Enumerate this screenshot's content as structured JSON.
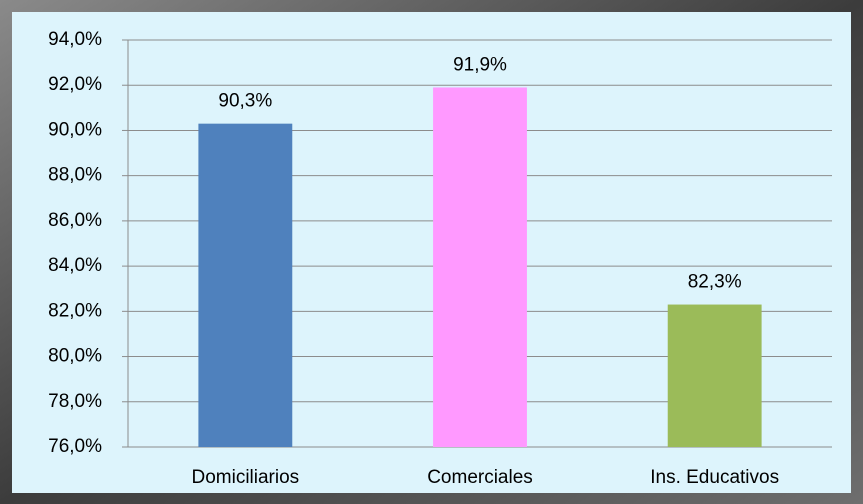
{
  "chart_data": {
    "type": "bar",
    "categories": [
      "Domiciliarios",
      "Comerciales",
      "Ins. Educativos"
    ],
    "values": [
      90.3,
      91.9,
      82.3
    ],
    "value_labels": [
      "90,3%",
      "91,9%",
      "82,3%"
    ],
    "colors": [
      "#4f81bd",
      "#ff99ff",
      "#9bbb59"
    ],
    "ylim": [
      76,
      94
    ],
    "yticks": [
      {
        "value": 76,
        "label": "76,0%"
      },
      {
        "value": 78,
        "label": "78,0%"
      },
      {
        "value": 80,
        "label": "80,0%"
      },
      {
        "value": 82,
        "label": "82,0%"
      },
      {
        "value": 84,
        "label": "84,0%"
      },
      {
        "value": 86,
        "label": "86,0%"
      },
      {
        "value": 88,
        "label": "88,0%"
      },
      {
        "value": 90,
        "label": "90,0%"
      },
      {
        "value": 92,
        "label": "92,0%"
      },
      {
        "value": 94,
        "label": "94,0%"
      }
    ],
    "grid": true
  }
}
